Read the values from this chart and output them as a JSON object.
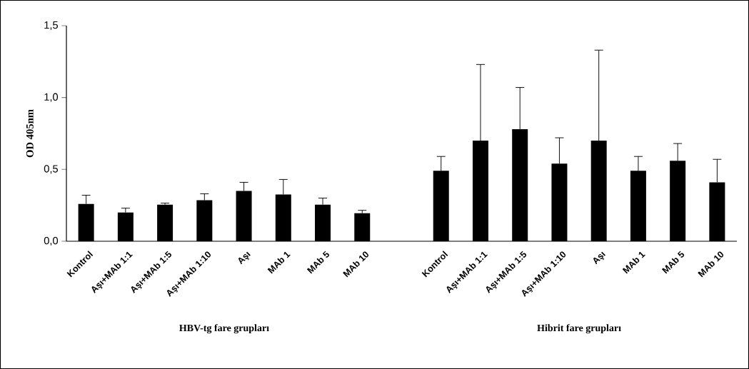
{
  "chart_data": {
    "type": "bar",
    "ylabel": "OD 405nm",
    "categories": [
      "Kontrol",
      "Aşı+MAb 1:1",
      "Aşı+MAb 1:5",
      "Aşı+MAb 1:10",
      "Aşı",
      "MAb 1",
      "MAb 5",
      "MAb 10",
      null,
      "Kontrol",
      "Aşı+MAb 1:1",
      "Aşı+MAb 1:5",
      "Aşı+MAb 1:10",
      "Aşı",
      "MAb 1",
      "MAb 5",
      "MAb 10"
    ],
    "values": [
      0.26,
      0.2,
      0.255,
      0.285,
      0.35,
      0.325,
      0.255,
      0.195,
      null,
      0.49,
      0.7,
      0.78,
      0.54,
      0.7,
      0.49,
      0.56,
      0.41
    ],
    "errors": [
      [
        0.26,
        0.32
      ],
      [
        0.2,
        0.23
      ],
      [
        0.255,
        0.265
      ],
      [
        0.285,
        0.33
      ],
      [
        0.35,
        0.41
      ],
      [
        0.325,
        0.43
      ],
      [
        0.255,
        0.3
      ],
      [
        0.195,
        0.215
      ],
      null,
      [
        0.49,
        0.59
      ],
      [
        0.7,
        1.23
      ],
      [
        0.78,
        1.07
      ],
      [
        0.54,
        0.72
      ],
      [
        0.7,
        1.33
      ],
      [
        0.49,
        0.59
      ],
      [
        0.56,
        0.68
      ],
      [
        0.41,
        0.57
      ]
    ],
    "color": "#000000",
    "ylim": [
      0,
      1.5
    ],
    "yticks": [
      {
        "value": 0,
        "label": "0,0"
      },
      {
        "value": 0.5,
        "label": "0,5"
      },
      {
        "value": 1,
        "label": "1,0"
      },
      {
        "value": 1.5,
        "label": "1,5"
      }
    ],
    "grid": false,
    "annotations": [
      "HBV-tg fare grupları",
      "Hibrit fare grupları"
    ]
  }
}
